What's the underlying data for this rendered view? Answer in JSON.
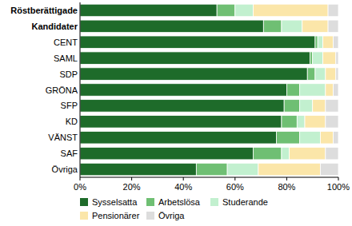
{
  "chart_data": {
    "type": "bar",
    "orientation": "horizontal",
    "stacked": true,
    "categories": [
      "Röstberättigade",
      "Kandidater",
      "CENT",
      "SAML",
      "SDP",
      "GRÖNA",
      "SFP",
      "KD",
      "VÄNST",
      "SAF",
      "Övriga"
    ],
    "series": [
      {
        "name": "Sysselsatta",
        "color": "#1e6b2a",
        "values": [
          53,
          71,
          91,
          89,
          88,
          80,
          79,
          78,
          76,
          67,
          45
        ]
      },
      {
        "name": "Arbetslösa",
        "color": "#6fbf73",
        "values": [
          7,
          7,
          1,
          1,
          3,
          5,
          6,
          6,
          9,
          11,
          12
        ]
      },
      {
        "name": "Studerande",
        "color": "#c2f0cf",
        "values": [
          7,
          8,
          2,
          4,
          4,
          10,
          5,
          3,
          8,
          3,
          12
        ]
      },
      {
        "name": "Pensionärer",
        "color": "#fbe6a9",
        "values": [
          29,
          10,
          4,
          5,
          4,
          3,
          5,
          8,
          5,
          14,
          24
        ]
      },
      {
        "name": "Övriga",
        "color": "#dddddd",
        "values": [
          4,
          4,
          2,
          1,
          1,
          2,
          5,
          5,
          2,
          5,
          7
        ]
      }
    ],
    "xlim": [
      0,
      100
    ],
    "xticks": [
      {
        "value": 0,
        "label": "0%"
      },
      {
        "value": 20,
        "label": "20%"
      },
      {
        "value": 40,
        "label": "40%"
      },
      {
        "value": 60,
        "label": "60%"
      },
      {
        "value": 80,
        "label": "80%"
      },
      {
        "value": 100,
        "label": "100%"
      }
    ],
    "grid": false,
    "legend": "bottom"
  }
}
